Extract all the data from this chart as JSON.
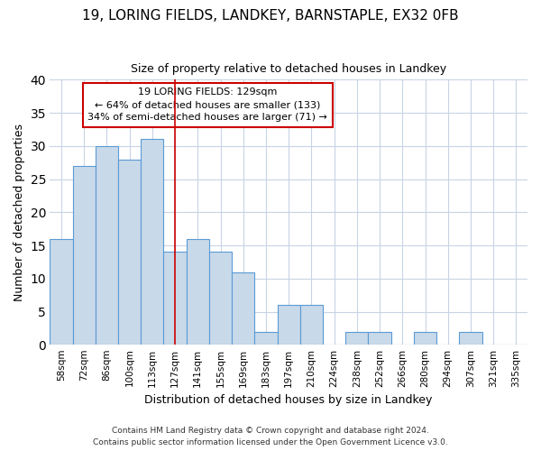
{
  "title1": "19, LORING FIELDS, LANDKEY, BARNSTAPLE, EX32 0FB",
  "title2": "Size of property relative to detached houses in Landkey",
  "xlabel": "Distribution of detached houses by size in Landkey",
  "ylabel": "Number of detached properties",
  "categories": [
    "58sqm",
    "72sqm",
    "86sqm",
    "100sqm",
    "113sqm",
    "127sqm",
    "141sqm",
    "155sqm",
    "169sqm",
    "183sqm",
    "197sqm",
    "210sqm",
    "224sqm",
    "238sqm",
    "252sqm",
    "266sqm",
    "280sqm",
    "294sqm",
    "307sqm",
    "321sqm",
    "335sqm"
  ],
  "values": [
    16,
    27,
    30,
    28,
    31,
    14,
    16,
    14,
    11,
    2,
    6,
    6,
    0,
    2,
    2,
    0,
    2,
    0,
    2,
    0,
    0
  ],
  "bar_color": "#c8d9ea",
  "bar_edge_color": "#5b9bd5",
  "vline_index": 5,
  "vline_color": "#cc0000",
  "annotation_line1": "19 LORING FIELDS: 129sqm",
  "annotation_line2": "← 64% of detached houses are smaller (133)",
  "annotation_line3": "34% of semi-detached houses are larger (71) →",
  "annotation_box_color": "#ffffff",
  "annotation_box_edge_color": "#cc0000",
  "ylim": [
    0,
    40
  ],
  "yticks": [
    0,
    5,
    10,
    15,
    20,
    25,
    30,
    35,
    40
  ],
  "grid_color": "#c8d4e4",
  "background_color": "#ffffff",
  "footer_line1": "Contains HM Land Registry data © Crown copyright and database right 2024.",
  "footer_line2": "Contains public sector information licensed under the Open Government Licence v3.0."
}
